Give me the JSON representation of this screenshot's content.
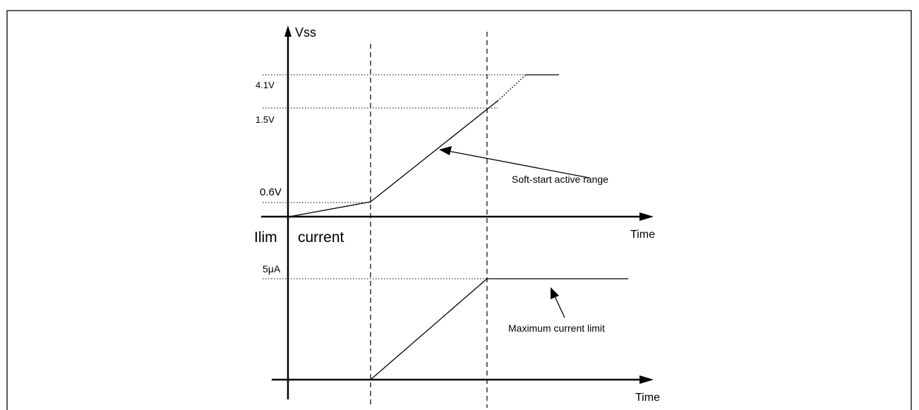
{
  "upper_graph": {
    "axis_label": "Vss",
    "levels": [
      "4.1V",
      "1.5V",
      "0.6V"
    ],
    "x_label": "Time",
    "annotation": "Soft-start active range"
  },
  "lower_graph": {
    "axis_label_1": "Ilim",
    "axis_label_2": "current",
    "level": "5μA",
    "x_label": "Time",
    "annotation": "Maximum current limit"
  }
}
